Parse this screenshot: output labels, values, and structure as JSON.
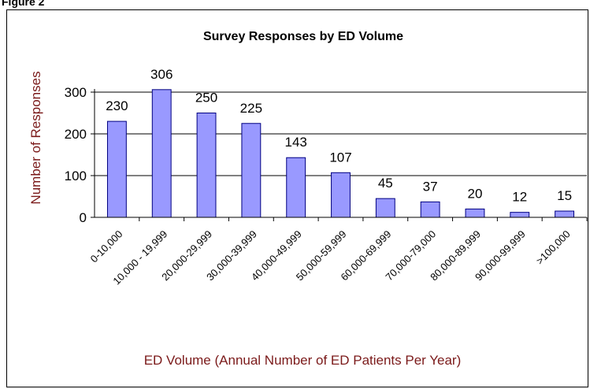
{
  "figure_label": "Figure 2",
  "chart_data": {
    "type": "bar",
    "title": "Survey Responses by ED Volume",
    "xlabel": "ED Volume (Annual Number of ED Patients Per Year)",
    "ylabel": "Number of Responses",
    "categories": [
      "0-10,000",
      "10,000 - 19,999",
      "20,000-29,999",
      "30,000-39,999",
      "40,000-49,999",
      "50,000-59,999",
      "60,000-69,999",
      "70,000-79,000",
      "80,000-89,999",
      "90,000-99,999",
      ">100,000"
    ],
    "values": [
      230,
      306,
      250,
      225,
      143,
      107,
      45,
      37,
      20,
      12,
      15
    ],
    "data_labels": [
      "230",
      "306",
      "250",
      "225",
      "143",
      "107",
      "45",
      "37",
      "20",
      "12",
      "15"
    ],
    "ylim": [
      0,
      300
    ],
    "yticks": [
      0,
      100,
      200,
      300
    ],
    "grid": true,
    "bar_color": "#9999ff",
    "bar_edge_color": "#000080",
    "axis_title_color": "#7b1a1a"
  }
}
